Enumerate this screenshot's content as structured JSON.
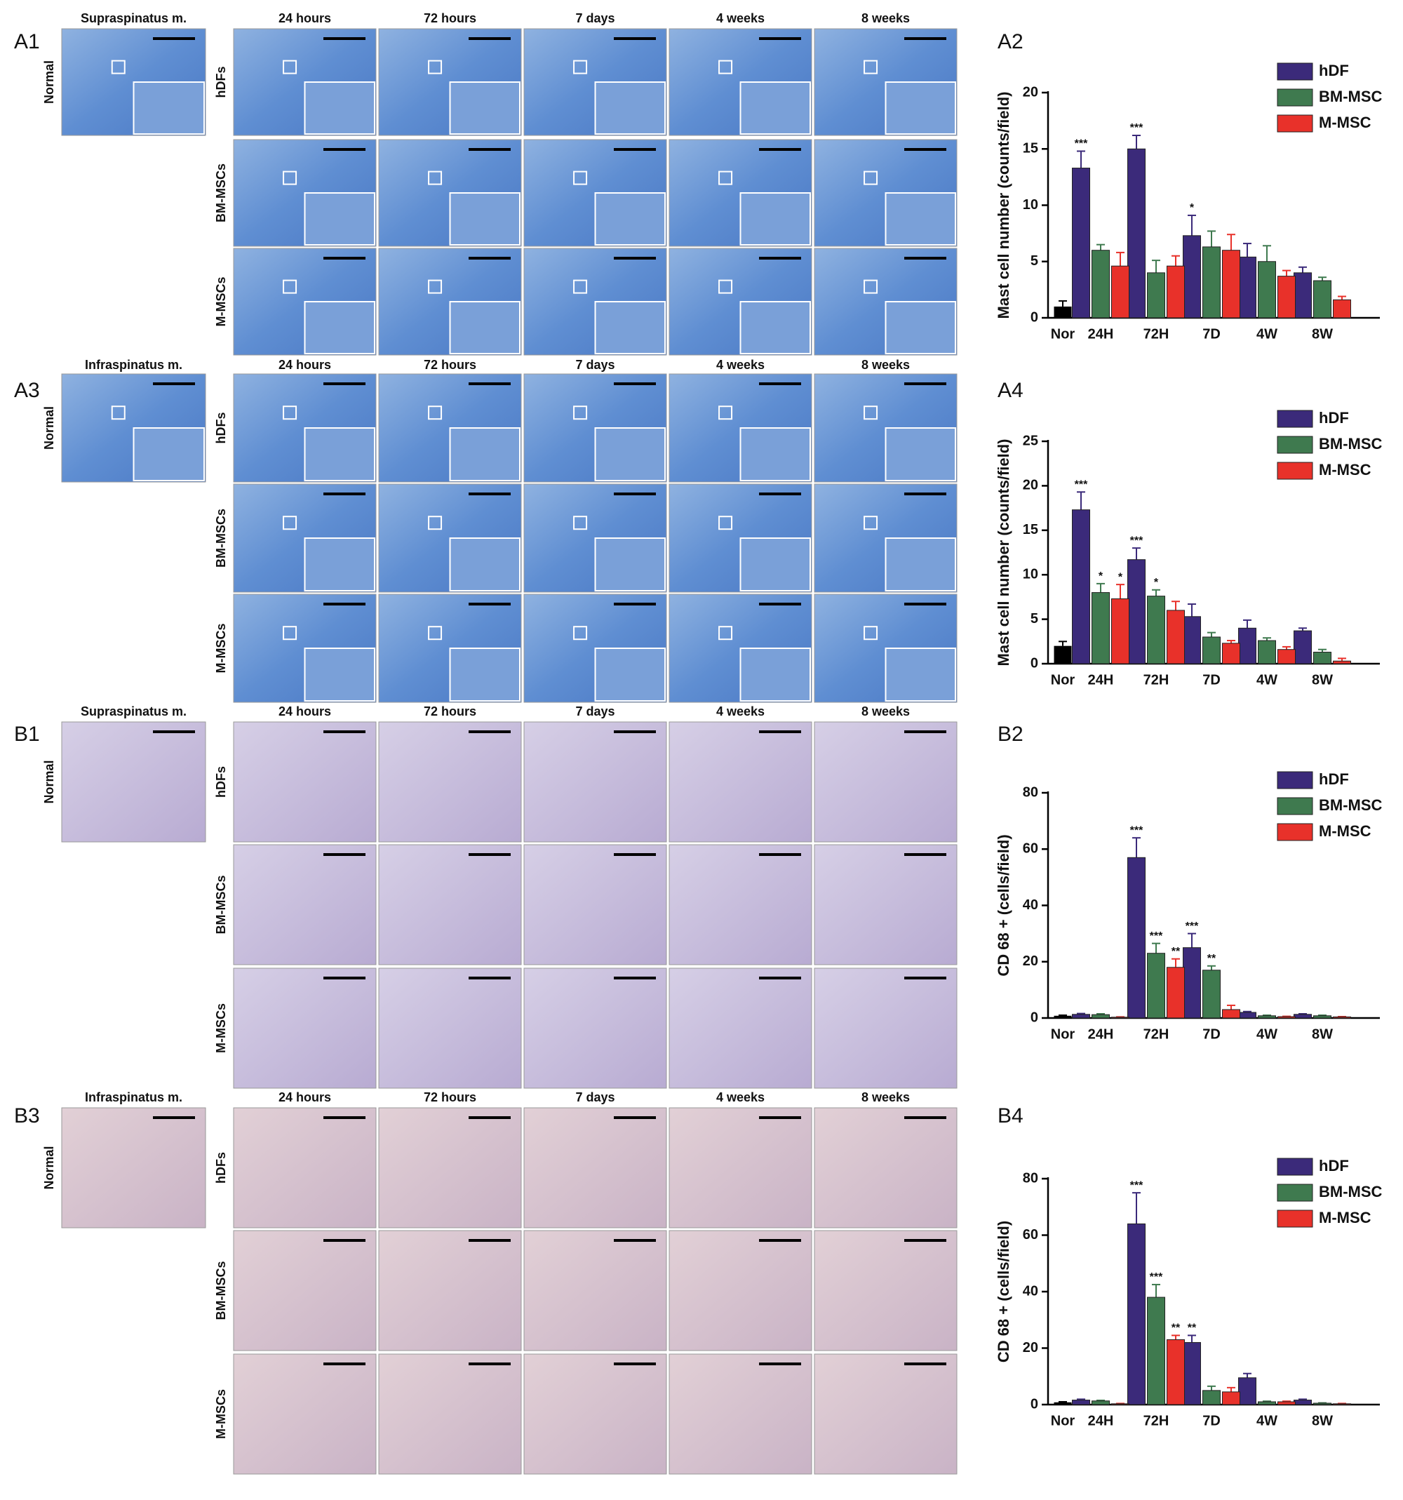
{
  "figure": {
    "panels": [
      {
        "label": "A1",
        "tissue": "Supraspinatus m.",
        "normal_label": "Normal",
        "columns": [
          "24 hours",
          "72 hours",
          "7 days",
          "4 weeks",
          "8 weeks"
        ],
        "rows": [
          "hDFs",
          "BM-MSCs",
          "M-MSCs"
        ]
      },
      {
        "label": "A3",
        "tissue": "Infraspinatus m.",
        "normal_label": "Normal",
        "columns": [
          "24 hours",
          "72 hours",
          "7 days",
          "4 weeks",
          "8 weeks"
        ],
        "rows": [
          "hDFs",
          "BM-MSCs",
          "M-MSCs"
        ]
      },
      {
        "label": "B1",
        "tissue": "Supraspinatus m.",
        "normal_label": "Normal",
        "columns": [
          "24 hours",
          "72 hours",
          "7 days",
          "4 weeks",
          "8 weeks"
        ],
        "rows": [
          "hDFs",
          "BM-MSCs",
          "M-MSCs"
        ]
      },
      {
        "label": "B3",
        "tissue": "Infraspinatus m.",
        "normal_label": "Normal",
        "columns": [
          "24 hours",
          "72 hours",
          "7 days",
          "4 weeks",
          "8 weeks"
        ],
        "rows": [
          "hDFs",
          "BM-MSCs",
          "M-MSCs"
        ]
      }
    ]
  },
  "chart_data": [
    {
      "type": "bar",
      "panel_label": "A2",
      "ylabel": "Mast cell number (counts/field)",
      "categories": [
        "Nor",
        "24H",
        "72H",
        "7D",
        "4W",
        "8W"
      ],
      "control": {
        "value": 1.0,
        "error": 0.5,
        "color": "#000000"
      },
      "series": [
        {
          "name": "hDF",
          "color": "#3b2a7a",
          "values": [
            null,
            13.3,
            15.0,
            7.3,
            5.4,
            4.0
          ],
          "errors": [
            null,
            1.5,
            1.2,
            1.8,
            1.2,
            0.5
          ],
          "significance": [
            null,
            "***",
            "***",
            "*",
            null,
            null
          ]
        },
        {
          "name": "BM-MSC",
          "color": "#3f7a4f",
          "values": [
            null,
            6.0,
            4.0,
            6.3,
            5.0,
            3.3
          ],
          "errors": [
            null,
            0.5,
            1.1,
            1.4,
            1.4,
            0.3
          ],
          "significance": [
            null,
            null,
            null,
            null,
            null,
            null
          ]
        },
        {
          "name": "M-MSC",
          "color": "#e8312a",
          "values": [
            null,
            4.6,
            4.6,
            6.0,
            3.7,
            1.6
          ],
          "errors": [
            null,
            1.2,
            0.9,
            1.4,
            0.5,
            0.3
          ],
          "significance": [
            null,
            null,
            null,
            null,
            null,
            null
          ]
        }
      ],
      "ylim": [
        0,
        20
      ],
      "yticks": [
        0,
        5,
        10,
        15,
        20
      ],
      "legend": "top-right"
    },
    {
      "type": "bar",
      "panel_label": "A4",
      "ylabel": "Mast cell number (counts/field)",
      "categories": [
        "Nor",
        "24H",
        "72H",
        "7D",
        "4W",
        "8W"
      ],
      "control": {
        "value": 2.0,
        "error": 0.5,
        "color": "#000000"
      },
      "series": [
        {
          "name": "hDF",
          "color": "#3b2a7a",
          "values": [
            null,
            17.3,
            11.7,
            5.3,
            4.0,
            3.7
          ],
          "errors": [
            null,
            2.0,
            1.3,
            1.4,
            0.9,
            0.3
          ],
          "significance": [
            null,
            "***",
            "***",
            null,
            null,
            null
          ]
        },
        {
          "name": "BM-MSC",
          "color": "#3f7a4f",
          "values": [
            null,
            8.0,
            7.6,
            3.0,
            2.6,
            1.3
          ],
          "errors": [
            null,
            1.0,
            0.7,
            0.5,
            0.3,
            0.3
          ],
          "significance": [
            null,
            "*",
            "*",
            null,
            null,
            null
          ]
        },
        {
          "name": "M-MSC",
          "color": "#e8312a",
          "values": [
            null,
            7.3,
            6.0,
            2.3,
            1.6,
            0.3
          ],
          "errors": [
            null,
            1.6,
            1.0,
            0.3,
            0.3,
            0.3
          ],
          "significance": [
            null,
            "*",
            null,
            null,
            null,
            null
          ]
        }
      ],
      "ylim": [
        0,
        25
      ],
      "yticks": [
        0,
        5,
        10,
        15,
        20,
        25
      ],
      "legend": "top-right"
    },
    {
      "type": "bar",
      "panel_label": "B2",
      "ylabel": "CD 68 + (cells/field)",
      "categories": [
        "Nor",
        "24H",
        "72H",
        "7D",
        "4W",
        "8W"
      ],
      "control": {
        "value": 0.8,
        "error": 0.2,
        "color": "#000000"
      },
      "series": [
        {
          "name": "hDF",
          "color": "#3b2a7a",
          "values": [
            null,
            1.3,
            57,
            25,
            2.0,
            1.3
          ],
          "errors": [
            null,
            0.3,
            7,
            5,
            0.3,
            0.2
          ],
          "significance": [
            null,
            null,
            "***",
            "***",
            null,
            null
          ]
        },
        {
          "name": "BM-MSC",
          "color": "#3f7a4f",
          "values": [
            null,
            1.2,
            23,
            17,
            0.8,
            0.8
          ],
          "errors": [
            null,
            0.3,
            3.5,
            1.5,
            0.2,
            0.2
          ],
          "significance": [
            null,
            null,
            "***",
            "**",
            null,
            null
          ]
        },
        {
          "name": "M-MSC",
          "color": "#e8312a",
          "values": [
            null,
            0.3,
            18,
            3,
            0.5,
            0.4
          ],
          "errors": [
            null,
            0.1,
            3,
            1.5,
            0.1,
            0.1
          ],
          "significance": [
            null,
            null,
            "**",
            null,
            null,
            null
          ]
        }
      ],
      "ylim": [
        0,
        80
      ],
      "yticks": [
        0,
        20,
        40,
        60,
        80
      ],
      "legend": "top-right"
    },
    {
      "type": "bar",
      "panel_label": "B4",
      "ylabel": "CD 68 + (cells/field)",
      "categories": [
        "Nor",
        "24H",
        "72H",
        "7D",
        "4W",
        "8W"
      ],
      "control": {
        "value": 0.8,
        "error": 0.2,
        "color": "#000000"
      },
      "series": [
        {
          "name": "hDF",
          "color": "#3b2a7a",
          "values": [
            null,
            1.6,
            64,
            22,
            9.5,
            1.6
          ],
          "errors": [
            null,
            0.3,
            11,
            2.5,
            1.5,
            0.3
          ],
          "significance": [
            null,
            null,
            "***",
            "**",
            null,
            null
          ]
        },
        {
          "name": "BM-MSC",
          "color": "#3f7a4f",
          "values": [
            null,
            1.3,
            38,
            5,
            1.0,
            0.5
          ],
          "errors": [
            null,
            0.2,
            4.5,
            1.5,
            0.2,
            0.1
          ],
          "significance": [
            null,
            null,
            "***",
            null,
            null,
            null
          ]
        },
        {
          "name": "M-MSC",
          "color": "#e8312a",
          "values": [
            null,
            0.3,
            23,
            4.5,
            1.0,
            0.3
          ],
          "errors": [
            null,
            0.1,
            1.5,
            1.5,
            0.2,
            0.1
          ],
          "significance": [
            null,
            null,
            "**",
            null,
            null,
            null
          ]
        }
      ],
      "ylim": [
        0,
        80
      ],
      "yticks": [
        0,
        20,
        40,
        60,
        80
      ],
      "legend": "top-right"
    }
  ]
}
